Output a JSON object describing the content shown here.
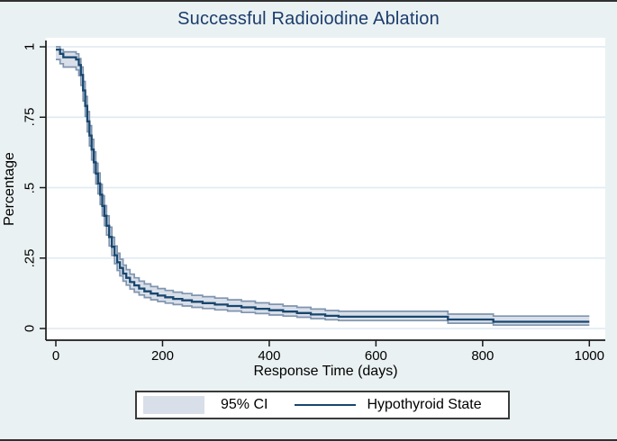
{
  "figure": {
    "title": "Successful Radioiodine Ablation",
    "x_axis": {
      "label": "Response Time (days)",
      "tick_labels": [
        "0",
        "200",
        "400",
        "600",
        "800",
        "1000"
      ]
    },
    "y_axis": {
      "label": "Percentage",
      "tick_labels": [
        "0",
        ".25",
        ".5",
        ".75",
        "1"
      ]
    },
    "legend": {
      "ci_label": "95% CI",
      "series_label": "Hypothyroid State"
    }
  },
  "colors": {
    "background": "#eaf1f2",
    "plot_background": "#ffffff",
    "gridline": "#e2ebf2",
    "axis": "#1a1a1a",
    "title": "#1b3c6d",
    "series_line": "#17466e",
    "ci_fill": "#d9dfe9",
    "ci_edge": "#7f94ae",
    "legend_border": "#3a3a3a"
  },
  "chart_data": {
    "type": "line",
    "subtype": "kaplan-meier-step",
    "title": "Successful Radioiodine Ablation",
    "xlabel": "Response Time (days)",
    "ylabel": "Percentage",
    "xlim": [
      0,
      1000
    ],
    "ylim": [
      0,
      1
    ],
    "x_ticks": [
      0,
      200,
      400,
      600,
      800,
      1000
    ],
    "y_ticks": [
      0,
      0.25,
      0.5,
      0.75,
      1
    ],
    "grid": "horizontal",
    "legend_position": "bottom",
    "series": [
      {
        "name": "Hypothyroid State",
        "ci_name": "95% CI",
        "point_format": [
          "time_days",
          "survival",
          "ci_lower",
          "ci_upper"
        ],
        "points": [
          [
            0,
            0.99,
            0.955,
            1.0
          ],
          [
            8,
            0.975,
            0.94,
            0.99
          ],
          [
            14,
            0.963,
            0.928,
            0.982
          ],
          [
            38,
            0.955,
            0.918,
            0.975
          ],
          [
            43,
            0.935,
            0.898,
            0.958
          ],
          [
            47,
            0.9,
            0.863,
            0.928
          ],
          [
            51,
            0.845,
            0.808,
            0.877
          ],
          [
            55,
            0.79,
            0.753,
            0.824
          ],
          [
            59,
            0.735,
            0.698,
            0.77
          ],
          [
            63,
            0.685,
            0.648,
            0.72
          ],
          [
            67,
            0.635,
            0.598,
            0.672
          ],
          [
            71,
            0.59,
            0.553,
            0.627
          ],
          [
            75,
            0.55,
            0.513,
            0.587
          ],
          [
            79,
            0.515,
            0.478,
            0.552
          ],
          [
            83,
            0.475,
            0.44,
            0.512
          ],
          [
            87,
            0.435,
            0.4,
            0.472
          ],
          [
            91,
            0.4,
            0.365,
            0.436
          ],
          [
            95,
            0.365,
            0.332,
            0.4
          ],
          [
            100,
            0.325,
            0.293,
            0.36
          ],
          [
            105,
            0.29,
            0.259,
            0.324
          ],
          [
            110,
            0.26,
            0.23,
            0.293
          ],
          [
            115,
            0.235,
            0.206,
            0.267
          ],
          [
            120,
            0.215,
            0.187,
            0.246
          ],
          [
            126,
            0.195,
            0.168,
            0.225
          ],
          [
            132,
            0.18,
            0.154,
            0.209
          ],
          [
            139,
            0.165,
            0.14,
            0.193
          ],
          [
            147,
            0.153,
            0.129,
            0.18
          ],
          [
            156,
            0.142,
            0.119,
            0.168
          ],
          [
            166,
            0.132,
            0.11,
            0.158
          ],
          [
            178,
            0.124,
            0.102,
            0.149
          ],
          [
            191,
            0.117,
            0.096,
            0.142
          ],
          [
            205,
            0.111,
            0.09,
            0.135
          ],
          [
            220,
            0.105,
            0.085,
            0.129
          ],
          [
            237,
            0.1,
            0.08,
            0.124
          ],
          [
            255,
            0.095,
            0.075,
            0.118
          ],
          [
            275,
            0.09,
            0.071,
            0.113
          ],
          [
            298,
            0.085,
            0.066,
            0.108
          ],
          [
            322,
            0.08,
            0.062,
            0.102
          ],
          [
            348,
            0.075,
            0.057,
            0.097
          ],
          [
            374,
            0.07,
            0.053,
            0.091
          ],
          [
            400,
            0.065,
            0.048,
            0.086
          ],
          [
            426,
            0.06,
            0.044,
            0.08
          ],
          [
            452,
            0.055,
            0.04,
            0.075
          ],
          [
            478,
            0.05,
            0.035,
            0.069
          ],
          [
            505,
            0.045,
            0.031,
            0.064
          ],
          [
            530,
            0.042,
            0.028,
            0.061
          ],
          [
            735,
            0.032,
            0.019,
            0.051
          ],
          [
            820,
            0.024,
            0.012,
            0.044
          ]
        ],
        "end_time": 1000
      }
    ]
  }
}
